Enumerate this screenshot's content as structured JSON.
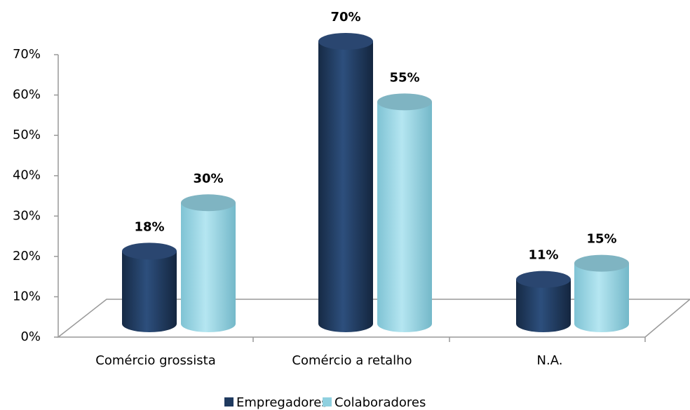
{
  "chart_data": {
    "type": "bar3d",
    "categories": [
      "Comércio grossista",
      "Comércio a retalho",
      "N.A."
    ],
    "series": [
      {
        "name": "Empregadores",
        "color": "#1f3a5f",
        "values": [
          18,
          70,
          11
        ],
        "value_labels": [
          "18%",
          "70%",
          "11%"
        ]
      },
      {
        "name": "Colaboradores",
        "color": "#8fd0df",
        "values": [
          30,
          55,
          15
        ],
        "value_labels": [
          "30%",
          "55%",
          "15%"
        ]
      }
    ],
    "ylim": [
      0,
      70
    ],
    "yticks": [
      {
        "value": 0,
        "label": "0%"
      },
      {
        "value": 10,
        "label": "10%"
      },
      {
        "value": 20,
        "label": "20%"
      },
      {
        "value": 30,
        "label": "30%"
      },
      {
        "value": 40,
        "label": "40%"
      },
      {
        "value": 50,
        "label": "50%"
      },
      {
        "value": 60,
        "label": "60%"
      },
      {
        "value": 70,
        "label": "70%"
      }
    ],
    "legend": "bottom"
  }
}
